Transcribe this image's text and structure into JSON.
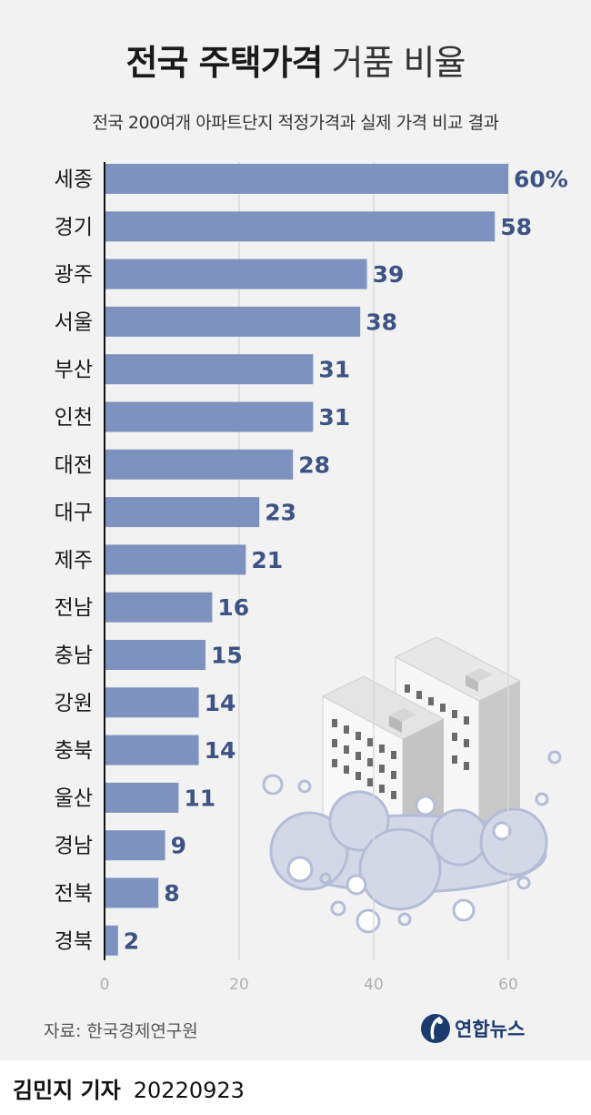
{
  "header": {
    "title_bold": "전국 주택가격",
    "title_light": "거품 비율",
    "subtitle": "전국 200여개 아파트단지 적정가격과 실제 가격 비교 결과"
  },
  "chart_data": {
    "type": "bar",
    "orientation": "horizontal",
    "categories": [
      "세종",
      "경기",
      "광주",
      "서울",
      "부산",
      "인천",
      "대전",
      "대구",
      "제주",
      "전남",
      "충남",
      "강원",
      "충북",
      "울산",
      "경남",
      "전북",
      "경북"
    ],
    "values": [
      60,
      58,
      39,
      38,
      31,
      31,
      28,
      23,
      21,
      16,
      15,
      14,
      14,
      11,
      9,
      8,
      2
    ],
    "value_labels": [
      "60%",
      "58",
      "39",
      "38",
      "31",
      "31",
      "28",
      "23",
      "21",
      "16",
      "15",
      "14",
      "14",
      "11",
      "9",
      "8",
      "2"
    ],
    "xticks": [
      "0",
      "20",
      "40",
      "60"
    ],
    "xlim": [
      0,
      60
    ],
    "grid": "vertical",
    "bar_color": "#7d92be",
    "label_color": "#3d5384"
  },
  "footer": {
    "source": "자료: 한국경제연구원",
    "logo_text": "연합뉴스",
    "author": "김민지 기자",
    "date": "20220923"
  },
  "colors": {
    "background": "#f2f2f2",
    "brand": "#1b3a6e"
  }
}
